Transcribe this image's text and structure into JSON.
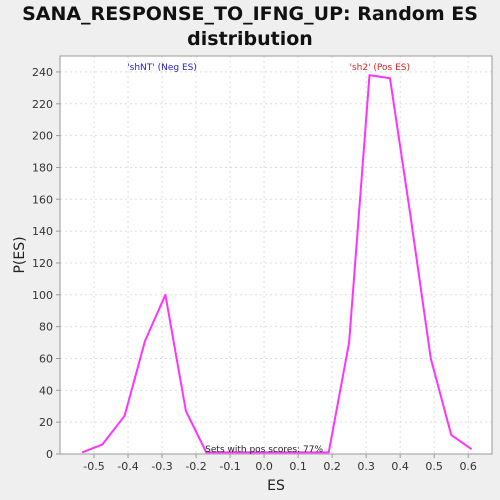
{
  "chart_data": {
    "type": "line",
    "title": "SANA_RESPONSE_TO_IFNG_UP: Random ES distribution",
    "xlabel": "ES",
    "ylabel": "P(ES)",
    "xlim": [
      -0.6,
      0.67
    ],
    "ylim": [
      0,
      250
    ],
    "x_ticks": [
      -0.5,
      -0.4,
      -0.3,
      -0.2,
      -0.1,
      0.0,
      0.1,
      0.2,
      0.3,
      0.4,
      0.5,
      0.6
    ],
    "x_tick_labels": [
      "-0.5",
      "-0.4",
      "-0.3",
      "-0.2",
      "-0.1",
      "0.0",
      "0.1",
      "0.2",
      "0.3",
      "0.4",
      "0.5",
      "0.6"
    ],
    "y_ticks": [
      0,
      20,
      40,
      60,
      80,
      100,
      120,
      140,
      160,
      180,
      200,
      220,
      240
    ],
    "grid": true,
    "series": [
      {
        "color": "#ff33ff",
        "x": [
          -0.535,
          -0.475,
          -0.41,
          -0.35,
          -0.29,
          -0.23,
          -0.17,
          0.19,
          0.25,
          0.31,
          0.37,
          0.43,
          0.49,
          0.55,
          0.61
        ],
        "y": [
          1,
          6,
          24,
          71,
          100,
          27,
          1,
          1,
          70,
          238,
          236,
          150,
          60,
          12,
          3
        ]
      }
    ],
    "annotations": {
      "neg_label": "'shNT' (Neg ES)",
      "pos_label": "'sh2' (Pos ES)",
      "bottom_note": "Sets with pos scores: 77%"
    },
    "colors": {
      "neg_label": "#2222cc",
      "pos_label": "#dd2222",
      "line": "#ff33ff",
      "plot_bg": "#ffffff",
      "page_bg": "#efefef"
    }
  }
}
